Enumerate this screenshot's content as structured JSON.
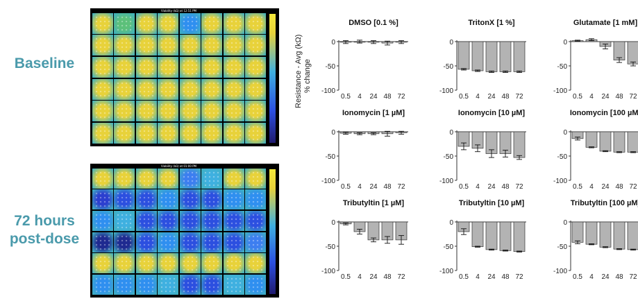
{
  "labels": {
    "baseline": "Baseline",
    "post_dose_line1": "72 hours",
    "post_dose_line2": "post-dose"
  },
  "heatmaps": {
    "baseline_title": "Viability (kΩ) at 12:51 PM",
    "post_title": "Viability (kΩ) at 01:00 PM",
    "rows": 6,
    "cols": 8,
    "baseline_colors": [
      [
        "#e8d23a",
        "#5cc07a",
        "#e8d23a",
        "#e8d23a",
        "#2f8ff0",
        "#e8d23a",
        "#e8d23a",
        "#e8d23a"
      ],
      [
        "#e8d23a",
        "#e8d23a",
        "#e8d23a",
        "#e8d23a",
        "#e8d23a",
        "#e8d23a",
        "#e8d23a",
        "#e8d23a"
      ],
      [
        "#e8d23a",
        "#e8d23a",
        "#e8d23a",
        "#e8d23a",
        "#e8d23a",
        "#e8d23a",
        "#e8d23a",
        "#e8d23a"
      ],
      [
        "#e8d23a",
        "#e8d23a",
        "#e8d23a",
        "#e8d23a",
        "#e8d23a",
        "#e8d23a",
        "#e8d23a",
        "#e8d23a"
      ],
      [
        "#e8d23a",
        "#e8d23a",
        "#e8d23a",
        "#e8d23a",
        "#e8d23a",
        "#e8d23a",
        "#e8d23a",
        "#e8d23a"
      ],
      [
        "#e8d23a",
        "#e8d23a",
        "#e8d23a",
        "#e8d23a",
        "#e8d23a",
        "#e8d23a",
        "#e8d23a",
        "#e8d23a"
      ]
    ],
    "post_colors": [
      [
        "#e8d23a",
        "#e8d23a",
        "#e8d23a",
        "#e8d23a",
        "#3d7ef0",
        "#3fb0e0",
        "#e8d23a",
        "#e8d23a"
      ],
      [
        "#2c3fcf",
        "#2c4fe0",
        "#2c4fe0",
        "#2f8ff0",
        "#2c4fe0",
        "#2c4fe0",
        "#2f8ff0",
        "#2f8ff0"
      ],
      [
        "#2f8ff0",
        "#3fb0e0",
        "#2c4fe0",
        "#2c4fe0",
        "#2c4fe0",
        "#2c4fe0",
        "#2c4fe0",
        "#2c4fe0"
      ],
      [
        "#1f2a90",
        "#1f2a90",
        "#2c4fe0",
        "#2f8ff0",
        "#2c4fe0",
        "#2c4fe0",
        "#2c4fe0",
        "#3d7ef0"
      ],
      [
        "#e8d23a",
        "#e8d23a",
        "#e8d23a",
        "#e8d23a",
        "#e8d23a",
        "#e8d23a",
        "#e8d23a",
        "#e8d23a"
      ],
      [
        "#2f8ff0",
        "#2f8ff0",
        "#2f8ff0",
        "#3fb0e0",
        "#2c4fe0",
        "#2c4fe0",
        "#3fb0e0",
        "#2f8ff0"
      ]
    ]
  },
  "chart_data": {
    "type": "bar",
    "ylabel_line1": "Resistance - Avg (kΩ)",
    "ylabel_line2": "% change",
    "categories": [
      "0.5",
      "4",
      "24",
      "48",
      "72"
    ],
    "ylim": [
      -100,
      0
    ],
    "yticks": [
      0,
      -50,
      -100
    ],
    "bar_color": "#b3b3b3",
    "panels": [
      {
        "title": "DMSO [0.1 %]",
        "values": [
          -1,
          0,
          -1,
          -3,
          -1
        ],
        "errors": [
          3,
          3,
          3,
          4,
          3
        ]
      },
      {
        "title": "TritonX [1 %]",
        "values": [
          -57,
          -60,
          -62,
          -62,
          -62
        ],
        "errors": [
          1.5,
          1.5,
          1.5,
          1.5,
          1.5
        ]
      },
      {
        "title": "Glutamate [1 mM]",
        "values": [
          2,
          4,
          -10,
          -38,
          -46
        ],
        "errors": [
          1,
          2,
          5,
          5,
          4
        ]
      },
      {
        "title": "Ionomycin [1 µM]",
        "values": [
          -3,
          -4,
          -4,
          -4,
          -2
        ],
        "errors": [
          2,
          2,
          2,
          5,
          3
        ]
      },
      {
        "title": "Ionomycin [10 µM]",
        "values": [
          -30,
          -34,
          -45,
          -45,
          -53
        ],
        "errors": [
          7,
          7,
          8,
          7,
          4
        ]
      },
      {
        "title": "Ionomycin [100 µM]",
        "values": [
          -14,
          -32,
          -40,
          -42,
          -42
        ],
        "errors": [
          3,
          1,
          1,
          1,
          1
        ]
      },
      {
        "title": "Tributyltin [1 µM]",
        "values": [
          -4,
          -20,
          -37,
          -37,
          -37
        ],
        "errors": [
          2,
          5,
          4,
          7,
          9
        ]
      },
      {
        "title": "Tributyltin [10 µM]",
        "values": [
          -20,
          -51,
          -57,
          -59,
          -61
        ],
        "errors": [
          6,
          1,
          1,
          1,
          1
        ]
      },
      {
        "title": "Tributyltin [100 µM]",
        "values": [
          -42,
          -46,
          -52,
          -56,
          -57
        ],
        "errors": [
          3,
          1,
          1,
          1,
          1
        ]
      }
    ]
  }
}
